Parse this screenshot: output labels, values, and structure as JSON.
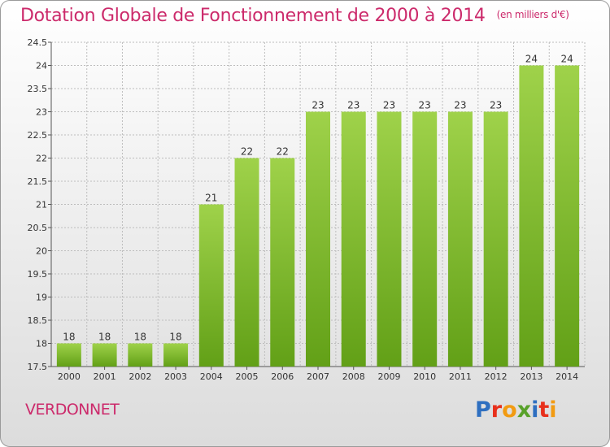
{
  "header": {
    "title": "Dotation Globale de Fonctionnement de 2000 à 2014",
    "unit": "(en milliers d'€)"
  },
  "footer": {
    "commune": "VERDONNET",
    "logo_letters": [
      {
        "char": "P",
        "color": "#2e6fc0"
      },
      {
        "char": "r",
        "color": "#e8301c"
      },
      {
        "char": "o",
        "color": "#f29b12"
      },
      {
        "char": "x",
        "color": "#58a12a"
      },
      {
        "char": "i",
        "color": "#2e6fc0"
      },
      {
        "char": "t",
        "color": "#e8301c"
      },
      {
        "char": "i",
        "color": "#f29b12"
      }
    ]
  },
  "colors": {
    "bar_top": "#9fd24a",
    "bar_bottom": "#62a017",
    "title": "#cc2a6b",
    "grid": "#bdbdbd"
  },
  "chart_data": {
    "type": "bar",
    "categories": [
      "2000",
      "2001",
      "2002",
      "2003",
      "2004",
      "2005",
      "2006",
      "2007",
      "2008",
      "2009",
      "2010",
      "2011",
      "2012",
      "2013",
      "2014"
    ],
    "values": [
      18,
      18,
      18,
      18,
      21,
      22,
      22,
      23,
      23,
      23,
      23,
      23,
      23,
      24,
      24
    ],
    "value_labels": [
      "18",
      "18",
      "18",
      "18",
      "21",
      "22",
      "22",
      "23",
      "23",
      "23",
      "23",
      "23",
      "23",
      "24",
      "24"
    ],
    "ylim": [
      17.5,
      24.5
    ],
    "yticks": [
      17.5,
      18,
      18.5,
      19,
      19.5,
      20,
      20.5,
      21,
      21.5,
      22,
      22.5,
      23,
      23.5,
      24,
      24.5
    ],
    "ytick_labels": [
      "17.5",
      "18",
      "18.5",
      "19",
      "19.5",
      "20",
      "20.5",
      "21",
      "21.5",
      "22",
      "22.5",
      "23",
      "23.5",
      "24",
      "24.5"
    ],
    "grid": true
  }
}
